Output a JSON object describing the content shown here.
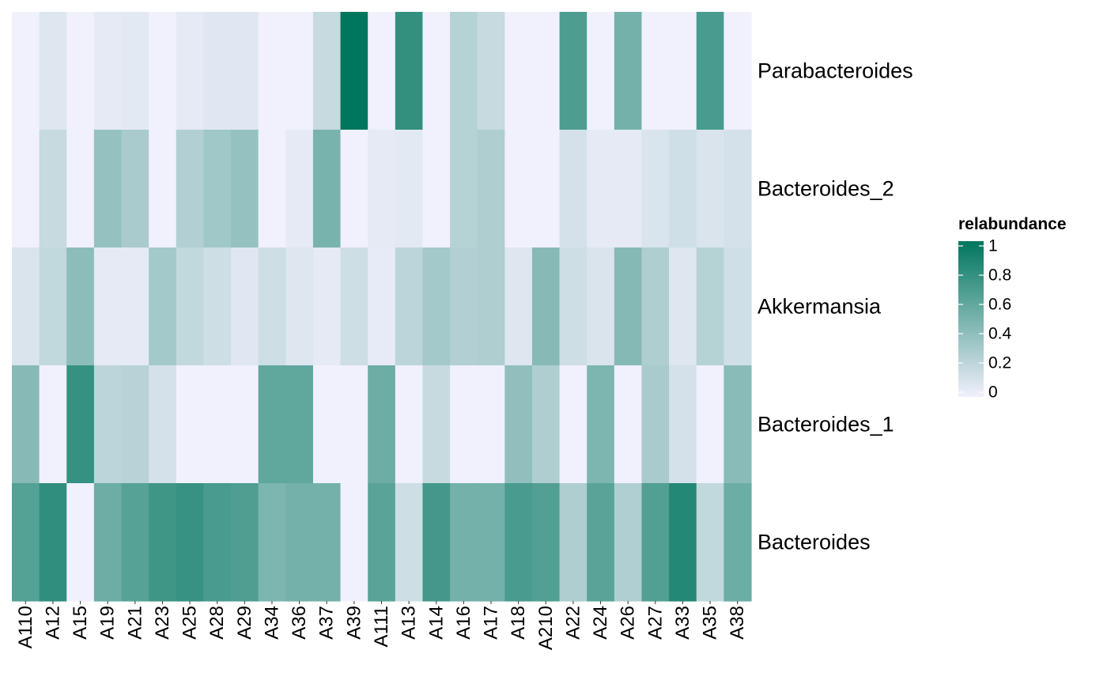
{
  "chart_data": {
    "type": "heatmap",
    "title": "",
    "xlabel": "",
    "ylabel": "",
    "columns": [
      "A110",
      "A12",
      "A15",
      "A19",
      "A21",
      "A23",
      "A25",
      "A28",
      "A29",
      "A34",
      "A36",
      "A37",
      "A39",
      "A111",
      "A13",
      "A14",
      "A16",
      "A17",
      "A18",
      "A210",
      "A22",
      "A24",
      "A26",
      "A27",
      "A33",
      "A35",
      "A38"
    ],
    "rows": [
      "Parabacteroides",
      "Bacteroides_2",
      "Akkermansia",
      "Bacteroides_1",
      "Bacteroides"
    ],
    "values": [
      [
        0.0,
        0.08,
        0.0,
        0.05,
        0.06,
        0.0,
        0.05,
        0.07,
        0.07,
        0.0,
        0.0,
        0.18,
        1.0,
        0.0,
        0.79,
        0.0,
        0.25,
        0.18,
        0.0,
        0.0,
        0.68,
        0.0,
        0.52,
        0.0,
        0.0,
        0.7,
        0.0
      ],
      [
        0.0,
        0.18,
        0.0,
        0.38,
        0.3,
        0.0,
        0.26,
        0.33,
        0.38,
        0.0,
        0.05,
        0.5,
        0.0,
        0.05,
        0.06,
        0.0,
        0.25,
        0.28,
        0.0,
        0.0,
        0.12,
        0.05,
        0.05,
        0.1,
        0.14,
        0.1,
        0.12
      ],
      [
        0.1,
        0.2,
        0.42,
        0.05,
        0.05,
        0.32,
        0.2,
        0.15,
        0.07,
        0.15,
        0.08,
        0.05,
        0.15,
        0.04,
        0.22,
        0.32,
        0.26,
        0.28,
        0.08,
        0.44,
        0.15,
        0.1,
        0.45,
        0.28,
        0.08,
        0.25,
        0.14
      ],
      [
        0.44,
        0.0,
        0.78,
        0.22,
        0.24,
        0.12,
        0.0,
        0.0,
        0.0,
        0.6,
        0.6,
        0.0,
        0.0,
        0.55,
        0.0,
        0.18,
        0.0,
        0.0,
        0.4,
        0.28,
        0.0,
        0.48,
        0.0,
        0.3,
        0.12,
        0.0,
        0.43
      ],
      [
        0.65,
        0.8,
        0.0,
        0.55,
        0.64,
        0.74,
        0.77,
        0.7,
        0.67,
        0.48,
        0.52,
        0.52,
        0.0,
        0.63,
        0.15,
        0.72,
        0.52,
        0.52,
        0.7,
        0.66,
        0.28,
        0.63,
        0.27,
        0.66,
        0.85,
        0.2,
        0.55
      ]
    ],
    "color_scale": {
      "low": "#f1f0fd",
      "high": "#00765e",
      "limits": [
        0,
        1
      ]
    },
    "legend": {
      "title": "relabundance",
      "ticks": [
        0,
        0.2,
        0.4,
        0.6,
        0.8,
        1
      ],
      "tick_labels": [
        "0",
        "0.2",
        "0.4",
        "0.6",
        "0.8",
        "1"
      ],
      "placement": "right"
    }
  }
}
